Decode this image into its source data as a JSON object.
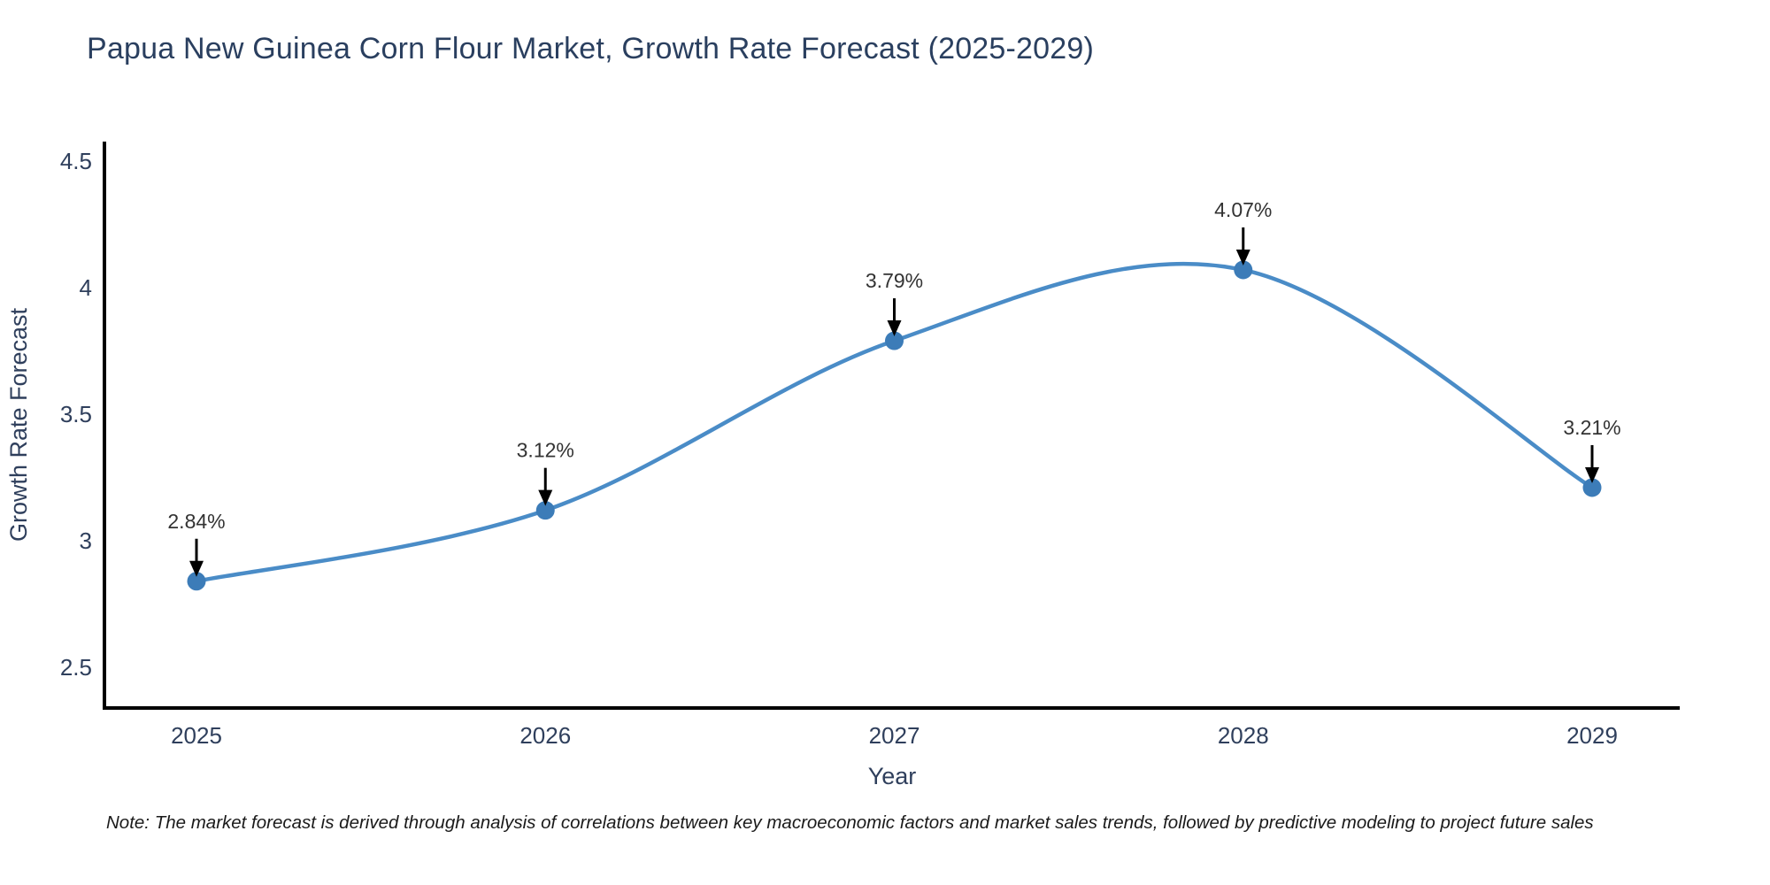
{
  "title": "Papua New Guinea Corn Flour Market, Growth Rate Forecast (2025-2029)",
  "note": "Note: The market forecast is derived through analysis of correlations between key macroeconomic factors and market sales trends, followed by predictive modeling to project future sales",
  "chart_data": {
    "type": "line",
    "title": "Papua New Guinea Corn Flour Market, Growth Rate Forecast (2025-2029)",
    "x": [
      2025,
      2026,
      2027,
      2028,
      2029
    ],
    "values": [
      2.84,
      3.12,
      3.79,
      4.07,
      3.21
    ],
    "point_labels": [
      "2.84%",
      "3.12%",
      "3.79%",
      "4.07%",
      "3.21%"
    ],
    "xlabel": "Year",
    "ylabel": "Growth Rate Forecast",
    "xtick_labels": [
      "2025",
      "2026",
      "2027",
      "2028",
      "2029"
    ],
    "ytick_values": [
      2.5,
      3,
      3.5,
      4,
      4.5
    ],
    "ytick_labels": [
      "2.5",
      "3",
      "3.5",
      "4",
      "4.5"
    ],
    "xlim": [
      2024.74,
      2029.25
    ],
    "ylim": [
      2.33,
      4.57
    ],
    "grid": false,
    "legend": "none",
    "line_shape": "spline",
    "colors": {
      "line": "#4a8cc7",
      "marker": "#3c7cb8",
      "axis": "#000000",
      "axis_text": "#2f3f5c",
      "annotation_text": "#333333",
      "arrow": "#000000",
      "background": "#ffffff"
    }
  }
}
